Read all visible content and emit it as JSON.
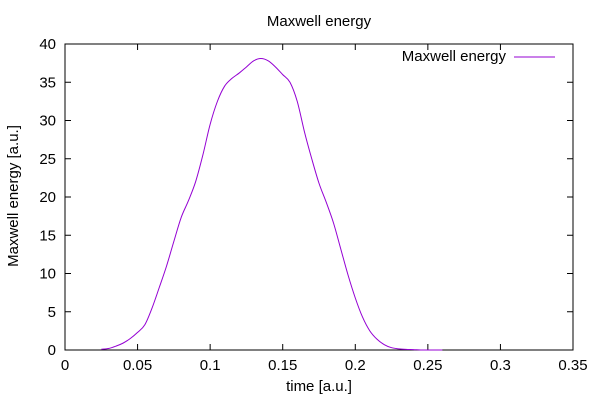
{
  "chart_data": {
    "type": "line",
    "title": "Maxwell energy",
    "xlabel": "time [a.u.]",
    "ylabel": "Maxwell energy [a.u.]",
    "xlim": [
      0,
      0.35
    ],
    "ylim": [
      0,
      40
    ],
    "xticks": [
      0,
      0.05,
      0.1,
      0.15,
      0.2,
      0.25,
      0.3,
      0.35
    ],
    "xtick_labels": [
      "0",
      "0.05",
      "0.1",
      "0.15",
      "0.2",
      "0.25",
      "0.3",
      "0.35"
    ],
    "yticks": [
      0,
      5,
      10,
      15,
      20,
      25,
      30,
      35,
      40
    ],
    "ytick_labels": [
      "0",
      "5",
      "10",
      "15",
      "20",
      "25",
      "30",
      "35",
      "40"
    ],
    "grid": false,
    "legend_position": "top-right",
    "series": [
      {
        "name": "Maxwell energy",
        "color": "#9400d3",
        "x": [
          0.025,
          0.03,
          0.035,
          0.04,
          0.045,
          0.05,
          0.055,
          0.06,
          0.065,
          0.07,
          0.075,
          0.08,
          0.085,
          0.09,
          0.095,
          0.1,
          0.105,
          0.11,
          0.115,
          0.12,
          0.125,
          0.13,
          0.135,
          0.14,
          0.145,
          0.15,
          0.155,
          0.16,
          0.165,
          0.17,
          0.175,
          0.18,
          0.185,
          0.19,
          0.195,
          0.2,
          0.205,
          0.21,
          0.215,
          0.22,
          0.225,
          0.23,
          0.235,
          0.24,
          0.245,
          0.25,
          0.255,
          0.26
        ],
        "y": [
          0.1,
          0.2,
          0.5,
          0.9,
          1.5,
          2.3,
          3.3,
          5.5,
          8.2,
          11.0,
          14.2,
          17.3,
          19.5,
          22.0,
          25.5,
          29.5,
          32.5,
          34.5,
          35.5,
          36.2,
          37.0,
          37.8,
          38.1,
          37.8,
          37.0,
          36.0,
          35.0,
          32.5,
          28.5,
          25.0,
          21.8,
          19.3,
          16.6,
          13.2,
          9.8,
          6.8,
          4.3,
          2.5,
          1.4,
          0.7,
          0.3,
          0.15,
          0.08,
          0.05,
          0.0,
          0.0,
          0.0,
          0.0
        ]
      }
    ]
  }
}
